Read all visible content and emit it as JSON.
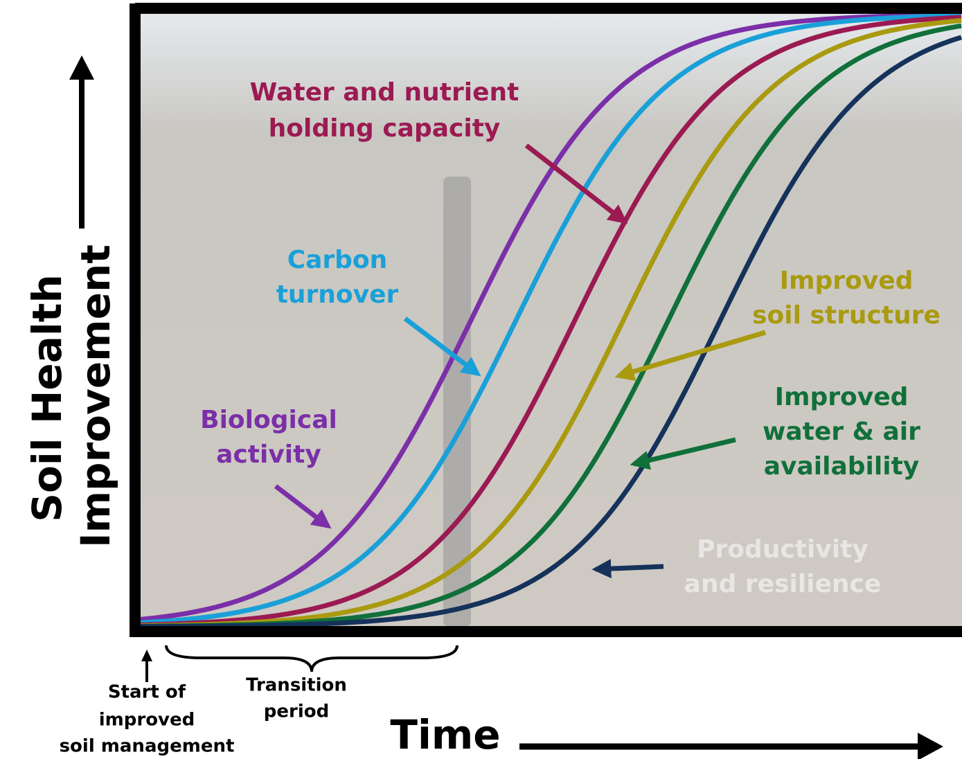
{
  "y_axis_label": [
    "Soil Health",
    "Improvement"
  ],
  "x_axis_label": "Time",
  "start_label": [
    "Start of",
    "improved",
    "soil management"
  ],
  "transition_label": [
    "Transition",
    "period"
  ],
  "curves": [
    {
      "lines": [
        "Biological",
        "activity"
      ],
      "color": "#7b2fa8"
    },
    {
      "lines": [
        "Carbon",
        "turnover"
      ],
      "color": "#1aa0d8"
    },
    {
      "lines": [
        "Water and nutrient",
        "holding capacity"
      ],
      "color": "#9b1a52"
    },
    {
      "lines": [
        "Improved",
        "soil structure"
      ],
      "color": "#a99a10"
    },
    {
      "lines": [
        "Improved",
        "water & air",
        "availability"
      ],
      "color": "#11703a"
    },
    {
      "lines": [
        "Productivity",
        "and resilience"
      ],
      "color": "#15325a"
    }
  ]
}
